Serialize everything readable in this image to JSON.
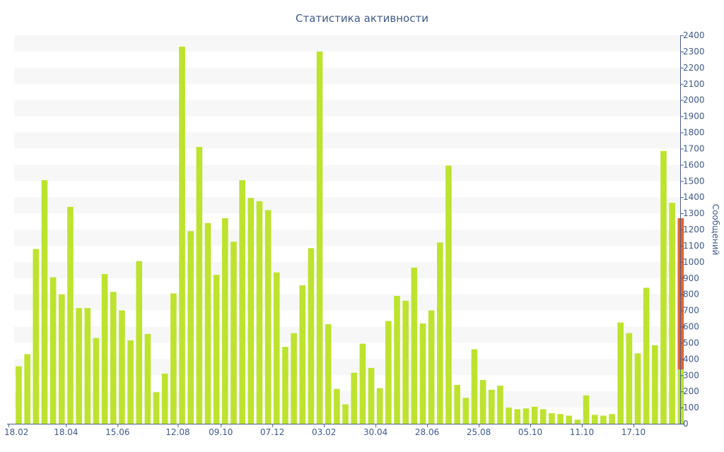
{
  "chart_data": {
    "type": "bar",
    "title": "Статистика активности",
    "xlabel": "",
    "ylabel": "Сообщений",
    "ylim": [
      0,
      2400
    ],
    "y_ticks": [
      0,
      100,
      200,
      300,
      400,
      500,
      600,
      700,
      800,
      900,
      1000,
      1100,
      1200,
      1300,
      1400,
      1500,
      1600,
      1700,
      1800,
      1900,
      2000,
      2100,
      2200,
      2300,
      2400
    ],
    "x_tick_labels": [
      "18.02",
      "18.04",
      "15.06",
      "12.08",
      "09.10",
      "07.12",
      "03.02",
      "30.04",
      "28.06",
      "25.08",
      "05.10",
      "11.10",
      "17.10"
    ],
    "x_tick_bar_index": [
      0,
      6,
      12,
      19,
      24,
      30,
      36,
      42,
      48,
      54,
      60,
      66,
      72
    ],
    "values": [
      355,
      430,
      1080,
      1505,
      905,
      800,
      1340,
      715,
      715,
      530,
      925,
      815,
      700,
      515,
      1005,
      555,
      195,
      310,
      805,
      2330,
      1190,
      1710,
      1240,
      920,
      1270,
      1125,
      1505,
      1395,
      1375,
      1320,
      935,
      475,
      560,
      855,
      1085,
      2300,
      615,
      215,
      120,
      315,
      495,
      345,
      220,
      635,
      790,
      760,
      965,
      620,
      700,
      1120,
      1595,
      240,
      160,
      460,
      270,
      210,
      235,
      100,
      90,
      95,
      105,
      90,
      65,
      60,
      50,
      25,
      175,
      55,
      50,
      60,
      625,
      560,
      435,
      840,
      485,
      1685,
      1365,
      1270
    ],
    "last_bar_split": {
      "lower": 335,
      "upper_color": "#e8632b"
    },
    "colors": {
      "bar": "#bde32e",
      "highlight": "#e8632b",
      "band": "#f7f7f7",
      "axis": "#4a6090",
      "text": "#3f5a8a"
    },
    "grid": "alternating horizontal bands",
    "y_axis_position": "right"
  }
}
